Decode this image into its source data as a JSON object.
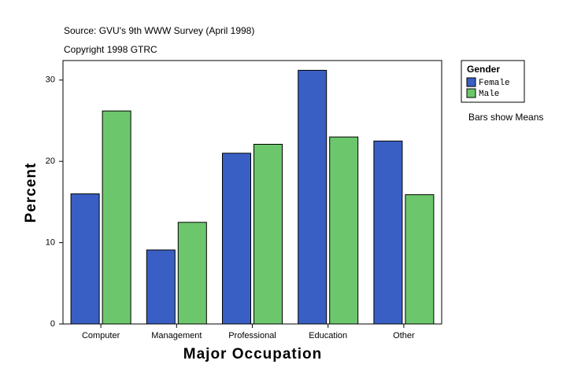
{
  "chart_data": {
    "type": "bar",
    "source": "Source: GVU's 9th WWW Survey (April 1998)",
    "copyright": "Copyright 1998 GTRC",
    "xlabel": "Major Occupation",
    "ylabel": "Percent",
    "legend_title": "Gender",
    "note": "Bars show Means",
    "categories": [
      "Computer",
      "Management",
      "Professional",
      "Education",
      "Other"
    ],
    "series": [
      {
        "name": "Female",
        "color": "#3a5fc4",
        "values": [
          16.0,
          9.1,
          21.0,
          31.2,
          22.5
        ]
      },
      {
        "name": "Male",
        "color": "#6cc76c",
        "values": [
          26.2,
          12.5,
          22.1,
          23.0,
          15.9
        ]
      }
    ],
    "ylim": [
      0,
      32.4
    ],
    "yticks": [
      0,
      10,
      20,
      30
    ],
    "grid": false,
    "legend": "right"
  }
}
